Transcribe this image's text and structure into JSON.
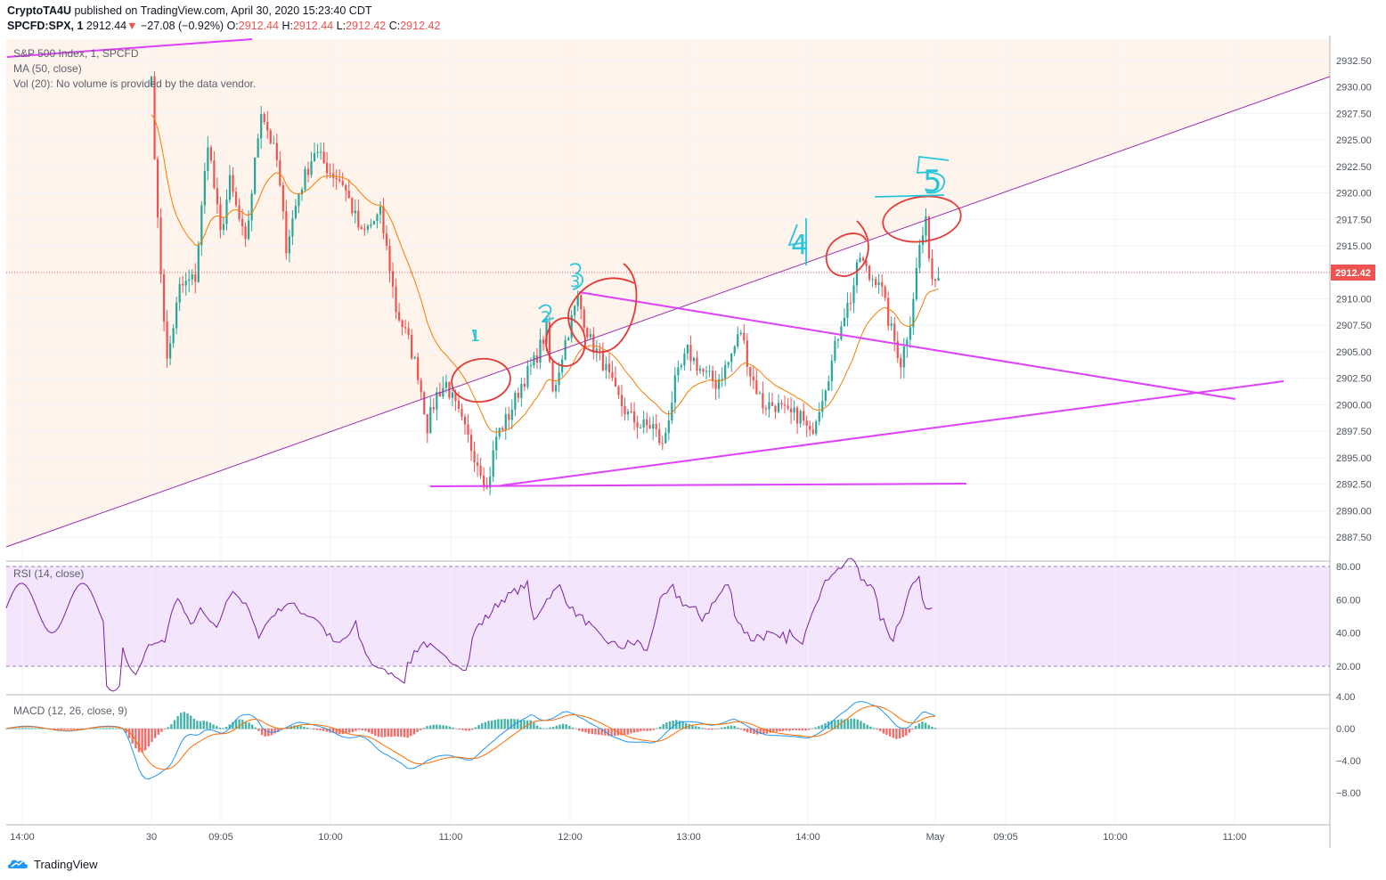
{
  "header": {
    "author": "CryptoTA4U",
    "published_text": "published on TradingView.com, April 30, 2020 15:23:40 CDT",
    "symbol": "SPCFD:SPX, 1",
    "last": "2912.44",
    "change_arrow": "▼",
    "change": "−27.08 (−0.92%)",
    "o_label": "O:",
    "o_val": "2912.44",
    "h_label": "H:",
    "h_val": "2912.44",
    "l_label": "L:",
    "l_val": "2912.42",
    "c_label": "C:",
    "c_val": "2912.42"
  },
  "legend": {
    "main_title": "S&P 500 Index, 1, SPCFD",
    "ma": "MA (50, close)",
    "vol": "Vol (20): No volume is provided by the data vendor.",
    "rsi": "RSI (14, close)",
    "macd": "MACD (12, 26, close, 9)"
  },
  "price_badge": "2912.42",
  "footer": {
    "brand": "TradingView",
    "logo_icon": "tradingview-logo-icon"
  },
  "annotations": [
    "1",
    "2",
    "3",
    "4",
    "5"
  ],
  "colors": {
    "up": "#26a69a",
    "down": "#ef5350",
    "ma": "#f57c00",
    "rsi": "#7b1fa2",
    "macd": "#2196f3",
    "signal": "#ff6d00",
    "trend_violet": "#9c27b0",
    "trend_magenta": "#e040fb",
    "annotation_red": "#e53935",
    "annotation_cyan": "#26c6da"
  },
  "chart_data": [
    {
      "type": "candlestick",
      "title": "S&P 500 Index, 1, SPCFD",
      "xlabel": "",
      "ylabel": "",
      "ylim": [
        2885.5,
        2934.5
      ],
      "x_tick_labels": [
        "14:00",
        "30",
        "09:05",
        "10:00",
        "11:00",
        "12:00",
        "13:00",
        "14:00",
        "May",
        "09:05",
        "10:00",
        "11:00"
      ],
      "y_tick_labels": [
        "2887.50",
        "2890.00",
        "2892.50",
        "2895.00",
        "2897.50",
        "2900.00",
        "2902.50",
        "2905.00",
        "2907.50",
        "2910.00",
        "2912.50",
        "2915.00",
        "2917.50",
        "2920.00",
        "2922.50",
        "2925.00",
        "2927.50",
        "2930.00",
        "2932.50"
      ],
      "close_anchors": [
        [
          0,
          2931
        ],
        [
          2,
          2917
        ],
        [
          5,
          2904
        ],
        [
          9,
          2911
        ],
        [
          14,
          2912
        ],
        [
          18,
          2925
        ],
        [
          22,
          2916
        ],
        [
          25,
          2921
        ],
        [
          30,
          2915
        ],
        [
          35,
          2928
        ],
        [
          40,
          2923
        ],
        [
          43,
          2915
        ],
        [
          47,
          2920
        ],
        [
          52,
          2924
        ],
        [
          57,
          2922
        ],
        [
          61,
          2921
        ],
        [
          67,
          2916
        ],
        [
          73,
          2918
        ],
        [
          76,
          2913
        ],
        [
          78,
          2909
        ],
        [
          82,
          2906
        ],
        [
          85,
          2903
        ],
        [
          88,
          2898
        ],
        [
          91,
          2901
        ],
        [
          94,
          2902
        ],
        [
          98,
          2899
        ],
        [
          102,
          2896
        ],
        [
          105,
          2894
        ],
        [
          107,
          2892
        ],
        [
          110,
          2897
        ],
        [
          114,
          2899
        ],
        [
          118,
          2902
        ],
        [
          122,
          2904
        ],
        [
          126,
          2907
        ],
        [
          128,
          2901
        ],
        [
          132,
          2906
        ],
        [
          136,
          2910
        ],
        [
          140,
          2906
        ],
        [
          144,
          2904
        ],
        [
          148,
          2901
        ],
        [
          152,
          2899
        ],
        [
          156,
          2898
        ],
        [
          160,
          2898
        ],
        [
          163,
          2896
        ],
        [
          167,
          2902
        ],
        [
          171,
          2905
        ],
        [
          176,
          2903
        ],
        [
          180,
          2902
        ],
        [
          184,
          2904
        ],
        [
          188,
          2907
        ],
        [
          191,
          2903
        ],
        [
          195,
          2900
        ],
        [
          199,
          2900
        ],
        [
          203,
          2899
        ],
        [
          207,
          2899
        ],
        [
          210,
          2897
        ],
        [
          213,
          2900
        ],
        [
          217,
          2904
        ],
        [
          220,
          2908
        ],
        [
          223,
          2910
        ],
        [
          226,
          2914
        ],
        [
          229,
          2912
        ],
        [
          232,
          2912
        ],
        [
          235,
          2908
        ],
        [
          237,
          2906
        ],
        [
          239,
          2904
        ],
        [
          242,
          2908
        ],
        [
          245,
          2915
        ],
        [
          247,
          2917
        ],
        [
          249,
          2912
        ],
        [
          251,
          2912
        ]
      ],
      "ma_length": 50,
      "current_price": 2912.42
    },
    {
      "type": "line",
      "title": "RSI (14, close)",
      "ylim": [
        0,
        85
      ],
      "y_tick_labels": [
        "20.00",
        "40.00",
        "60.00",
        "80.00"
      ],
      "band": [
        20,
        80
      ]
    },
    {
      "type": "bar",
      "title": "MACD (12, 26, close, 9)",
      "ylim": [
        -10.8,
        4.5
      ],
      "y_tick_labels": [
        "−8.00",
        "−4.00",
        "0.00",
        "4.00"
      ]
    }
  ]
}
